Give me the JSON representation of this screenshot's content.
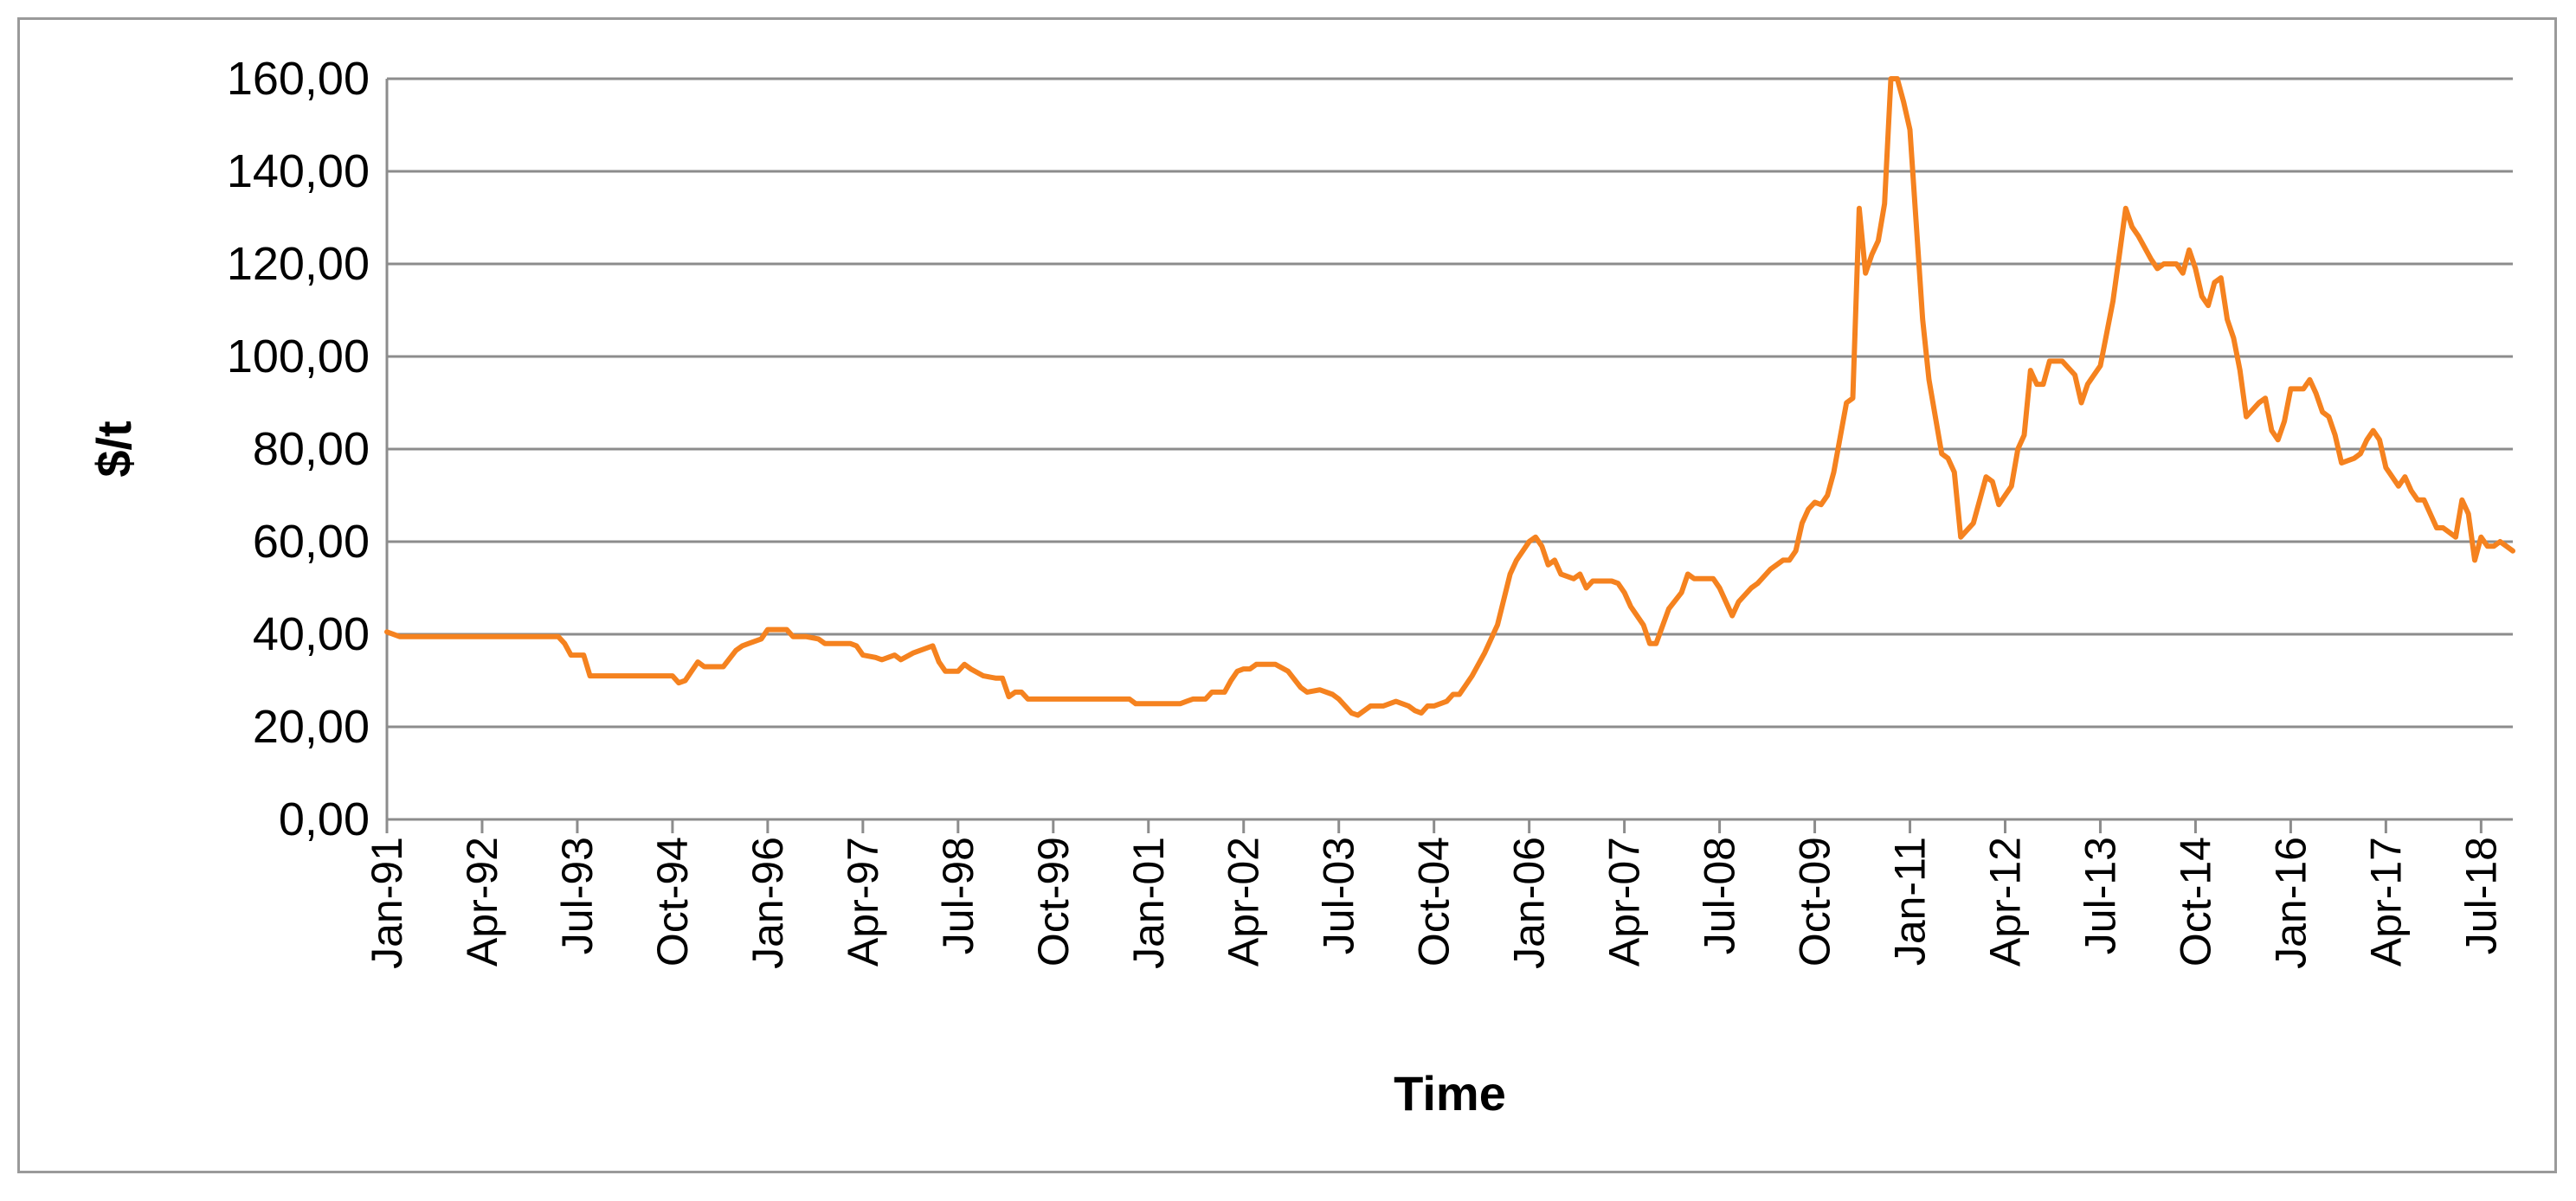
{
  "chart_data": {
    "type": "line",
    "title": "",
    "xlabel": "Time",
    "ylabel": "$/t",
    "ylim": [
      0,
      160
    ],
    "y_ticks": [
      "0,00",
      "20,00",
      "40,00",
      "60,00",
      "80,00",
      "100,00",
      "120,00",
      "140,00",
      "160,00"
    ],
    "x_tick_labels": [
      "Jan-91",
      "Apr-92",
      "Jul-93",
      "Oct-94",
      "Jan-96",
      "Apr-97",
      "Jul-98",
      "Oct-99",
      "Jan-01",
      "Apr-02",
      "Jul-03",
      "Oct-04",
      "Jan-06",
      "Apr-07",
      "Jul-08",
      "Oct-09",
      "Jan-11",
      "Apr-12",
      "Jul-13",
      "Oct-14",
      "Jan-16",
      "Apr-17",
      "Jul-18"
    ],
    "x_unit": "month",
    "x_start": "Jan-91",
    "x_end": "Dec-18",
    "grid": true,
    "legend": "none",
    "series": [
      {
        "color": "#f5821f",
        "points": [
          [
            "Jan-91",
            40.5
          ],
          [
            "Mar-91",
            39.5
          ],
          [
            "Jan-92",
            39.5
          ],
          [
            "Jan-93",
            39.5
          ],
          [
            "Apr-93",
            39.5
          ],
          [
            "May-93",
            38.0
          ],
          [
            "Jun-93",
            35.5
          ],
          [
            "Aug-93",
            35.5
          ],
          [
            "Sep-93",
            31.0
          ],
          [
            "Jan-94",
            31.0
          ],
          [
            "Jul-94",
            31.0
          ],
          [
            "Oct-94",
            31.0
          ],
          [
            "Nov-94",
            29.5
          ],
          [
            "Dec-94",
            30.0
          ],
          [
            "Feb-95",
            34.0
          ],
          [
            "Mar-95",
            33.0
          ],
          [
            "Jun-95",
            33.0
          ],
          [
            "Aug-95",
            36.5
          ],
          [
            "Sep-95",
            37.5
          ],
          [
            "Oct-95",
            38.0
          ],
          [
            "Dec-95",
            39.0
          ],
          [
            "Jan-96",
            41.0
          ],
          [
            "Apr-96",
            41.0
          ],
          [
            "May-96",
            39.5
          ],
          [
            "Jul-96",
            39.5
          ],
          [
            "Sep-96",
            39.0
          ],
          [
            "Oct-96",
            38.0
          ],
          [
            "Feb-97",
            38.0
          ],
          [
            "Mar-97",
            37.5
          ],
          [
            "Apr-97",
            35.5
          ],
          [
            "Jun-97",
            35.0
          ],
          [
            "Jul-97",
            34.5
          ],
          [
            "Sep-97",
            35.5
          ],
          [
            "Oct-97",
            34.5
          ],
          [
            "Dec-97",
            36.0
          ],
          [
            "Mar-98",
            37.5
          ],
          [
            "Apr-98",
            34.0
          ],
          [
            "May-98",
            32.0
          ],
          [
            "Jul-98",
            32.0
          ],
          [
            "Aug-98",
            33.5
          ],
          [
            "Sep-98",
            32.5
          ],
          [
            "Nov-98",
            31.0
          ],
          [
            "Jan-99",
            30.5
          ],
          [
            "Feb-99",
            30.5
          ],
          [
            "Mar-99",
            26.5
          ],
          [
            "Apr-99",
            27.5
          ],
          [
            "May-99",
            27.5
          ],
          [
            "Jun-99",
            26.0
          ],
          [
            "Jan-00",
            26.0
          ],
          [
            "Oct-00",
            26.0
          ],
          [
            "Nov-00",
            25.0
          ],
          [
            "Jun-01",
            25.0
          ],
          [
            "Jul-01",
            25.5
          ],
          [
            "Aug-01",
            26.0
          ],
          [
            "Oct-01",
            26.0
          ],
          [
            "Nov-01",
            27.5
          ],
          [
            "Jan-02",
            27.5
          ],
          [
            "Feb-02",
            30.0
          ],
          [
            "Mar-02",
            32.0
          ],
          [
            "Apr-02",
            32.5
          ],
          [
            "May-02",
            32.5
          ],
          [
            "Jun-02",
            33.5
          ],
          [
            "Sep-02",
            33.5
          ],
          [
            "Nov-02",
            32.0
          ],
          [
            "Jan-03",
            28.5
          ],
          [
            "Feb-03",
            27.5
          ],
          [
            "Apr-03",
            28.0
          ],
          [
            "Jun-03",
            27.0
          ],
          [
            "Jul-03",
            26.0
          ],
          [
            "Sep-03",
            23.0
          ],
          [
            "Oct-03",
            22.5
          ],
          [
            "Dec-03",
            24.5
          ],
          [
            "Feb-04",
            24.5
          ],
          [
            "Apr-04",
            25.5
          ],
          [
            "Jun-04",
            24.5
          ],
          [
            "Jul-04",
            23.5
          ],
          [
            "Aug-04",
            23.0
          ],
          [
            "Sep-04",
            24.5
          ],
          [
            "Oct-04",
            24.5
          ],
          [
            "Dec-04",
            25.5
          ],
          [
            "Jan-05",
            27.0
          ],
          [
            "Feb-05",
            27.0
          ],
          [
            "Mar-05",
            29.0
          ],
          [
            "Apr-05",
            31.0
          ],
          [
            "Jun-05",
            36.0
          ],
          [
            "Aug-05",
            42.0
          ],
          [
            "Oct-05",
            53.0
          ],
          [
            "Nov-05",
            56.0
          ],
          [
            "Jan-06",
            60.0
          ],
          [
            "Feb-06",
            61.0
          ],
          [
            "Mar-06",
            59.0
          ],
          [
            "Apr-06",
            55.0
          ],
          [
            "May-06",
            56.0
          ],
          [
            "Jun-06",
            53.0
          ],
          [
            "Aug-06",
            52.0
          ],
          [
            "Sep-06",
            53.0
          ],
          [
            "Oct-06",
            50.0
          ],
          [
            "Nov-06",
            51.5
          ],
          [
            "Feb-07",
            51.5
          ],
          [
            "Mar-07",
            51.0
          ],
          [
            "Apr-07",
            49.0
          ],
          [
            "May-07",
            46.0
          ],
          [
            "Jul-07",
            42.0
          ],
          [
            "Aug-07",
            38.0
          ],
          [
            "Sep-07",
            38.0
          ],
          [
            "Nov-07",
            45.5
          ],
          [
            "Jan-08",
            49.0
          ],
          [
            "Feb-08",
            53.0
          ],
          [
            "Mar-08",
            52.0
          ],
          [
            "Jun-08",
            52.0
          ],
          [
            "Jul-08",
            50.0
          ],
          [
            "Aug-08",
            47.0
          ],
          [
            "Sep-08",
            44.0
          ],
          [
            "Oct-08",
            47.0
          ],
          [
            "Dec-08",
            50.0
          ],
          [
            "Jan-09",
            51.0
          ],
          [
            "Mar-09",
            54.0
          ],
          [
            "May-09",
            56.0
          ],
          [
            "Jun-09",
            56.0
          ],
          [
            "Jul-09",
            58.0
          ],
          [
            "Aug-09",
            64.0
          ],
          [
            "Sep-09",
            67.0
          ],
          [
            "Oct-09",
            68.5
          ],
          [
            "Nov-09",
            68.0
          ],
          [
            "Dec-09",
            70.0
          ],
          [
            "Jan-10",
            75.0
          ],
          [
            "Mar-10",
            90.0
          ],
          [
            "Apr-10",
            91.0
          ],
          [
            "May-10",
            132.0
          ],
          [
            "Jun-10",
            118.0
          ],
          [
            "Jul-10",
            122.0
          ],
          [
            "Aug-10",
            125.0
          ],
          [
            "Sep-10",
            133.0
          ],
          [
            "Oct-10",
            160.0
          ],
          [
            "Nov-10",
            160.0
          ],
          [
            "Dec-10",
            155.0
          ],
          [
            "Jan-11",
            149.0
          ],
          [
            "Mar-11",
            108.0
          ],
          [
            "Apr-11",
            95.0
          ],
          [
            "Jun-11",
            79.0
          ],
          [
            "Jul-11",
            78.0
          ],
          [
            "Aug-11",
            75.0
          ],
          [
            "Sep-11",
            61.0
          ],
          [
            "Nov-11",
            64.0
          ],
          [
            "Jan-12",
            74.0
          ],
          [
            "Feb-12",
            73.0
          ],
          [
            "Mar-12",
            68.0
          ],
          [
            "May-12",
            72.0
          ],
          [
            "Jun-12",
            80.0
          ],
          [
            "Jul-12",
            83.0
          ],
          [
            "Aug-12",
            97.0
          ],
          [
            "Sep-12",
            94.0
          ],
          [
            "Oct-12",
            94.0
          ],
          [
            "Nov-12",
            99.0
          ],
          [
            "Jan-13",
            99.0
          ],
          [
            "Mar-13",
            96.0
          ],
          [
            "Apr-13",
            90.0
          ],
          [
            "May-13",
            94.0
          ],
          [
            "Jun-13",
            96.0
          ],
          [
            "Jul-13",
            98.0
          ],
          [
            "Aug-13",
            105.0
          ],
          [
            "Sep-13",
            112.0
          ],
          [
            "Oct-13",
            122.0
          ],
          [
            "Nov-13",
            132.0
          ],
          [
            "Dec-13",
            128.0
          ],
          [
            "Jan-14",
            126.0
          ],
          [
            "Mar-14",
            121.0
          ],
          [
            "Apr-14",
            119.0
          ],
          [
            "May-14",
            120.0
          ],
          [
            "Jul-14",
            120.0
          ],
          [
            "Aug-14",
            118.0
          ],
          [
            "Sep-14",
            123.0
          ],
          [
            "Oct-14",
            119.0
          ],
          [
            "Nov-14",
            113.0
          ],
          [
            "Dec-14",
            111.0
          ],
          [
            "Jan-15",
            116.0
          ],
          [
            "Feb-15",
            117.0
          ],
          [
            "Mar-15",
            108.0
          ],
          [
            "Apr-15",
            104.0
          ],
          [
            "May-15",
            97.0
          ],
          [
            "Jun-15",
            87.0
          ],
          [
            "Aug-15",
            90.0
          ],
          [
            "Sep-15",
            91.0
          ],
          [
            "Oct-15",
            84.0
          ],
          [
            "Nov-15",
            82.0
          ],
          [
            "Dec-15",
            86.0
          ],
          [
            "Jan-16",
            93.0
          ],
          [
            "Mar-16",
            93.0
          ],
          [
            "Apr-16",
            95.0
          ],
          [
            "May-16",
            92.0
          ],
          [
            "Jun-16",
            88.0
          ],
          [
            "Jul-16",
            87.0
          ],
          [
            "Aug-16",
            83.0
          ],
          [
            "Sep-16",
            77.0
          ],
          [
            "Nov-16",
            78.0
          ],
          [
            "Dec-16",
            79.0
          ],
          [
            "Jan-17",
            82.0
          ],
          [
            "Feb-17",
            84.0
          ],
          [
            "Mar-17",
            82.0
          ],
          [
            "Apr-17",
            76.0
          ],
          [
            "May-17",
            74.0
          ],
          [
            "Jun-17",
            72.0
          ],
          [
            "Jul-17",
            74.0
          ],
          [
            "Aug-17",
            71.0
          ],
          [
            "Sep-17",
            69.0
          ],
          [
            "Oct-17",
            69.0
          ],
          [
            "Nov-17",
            66.0
          ],
          [
            "Dec-17",
            63.0
          ],
          [
            "Jan-18",
            63.0
          ],
          [
            "Feb-18",
            62.0
          ],
          [
            "Mar-18",
            61.0
          ],
          [
            "Apr-18",
            69.0
          ],
          [
            "May-18",
            66.0
          ],
          [
            "Jun-18",
            56.0
          ],
          [
            "Jul-18",
            61.0
          ],
          [
            "Aug-18",
            59.0
          ],
          [
            "Sep-18",
            59.0
          ],
          [
            "Oct-18",
            60.0
          ],
          [
            "Nov-18",
            59.0
          ],
          [
            "Dec-18",
            58.0
          ]
        ]
      }
    ]
  }
}
